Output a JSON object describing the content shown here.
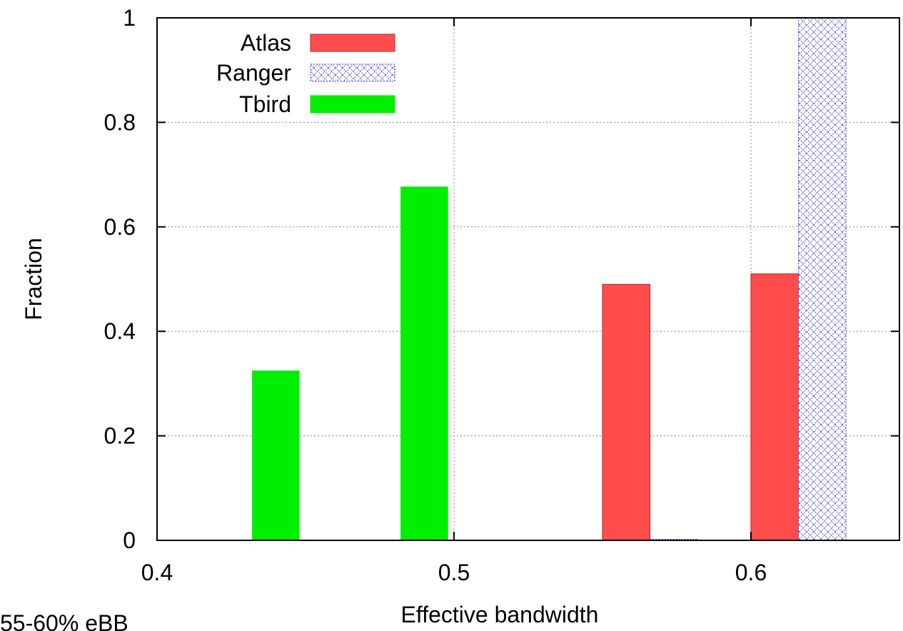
{
  "chart_data": {
    "type": "bar",
    "xlabel": "Effective bandwidth",
    "ylabel": "Fraction",
    "xlim": [
      0.4,
      0.65
    ],
    "ylim": [
      0,
      1
    ],
    "xticks": [
      "0.4",
      "0.5",
      "0.6"
    ],
    "yticks": [
      "0",
      "0.2",
      "0.4",
      "0.6",
      "0.8",
      "1"
    ],
    "grid": true,
    "legend": "top-left",
    "series": [
      {
        "name": "Atlas",
        "color": "#ff4d4d",
        "pattern": "solid",
        "bars": [
          {
            "x": 0.55,
            "x_end": 0.566,
            "value": 0.49
          },
          {
            "x": 0.6,
            "x_end": 0.616,
            "value": 0.51
          }
        ]
      },
      {
        "name": "Ranger",
        "color": "#3030e0",
        "pattern": "crosshatch",
        "bars": [
          {
            "x": 0.566,
            "x_end": 0.582,
            "value": 0.0
          },
          {
            "x": 0.616,
            "x_end": 0.632,
            "value": 1.0
          }
        ]
      },
      {
        "name": "Tbird",
        "color": "#00ee00",
        "pattern": "solid",
        "bars": [
          {
            "x": 0.432,
            "x_end": 0.448,
            "value": 0.325
          },
          {
            "x": 0.482,
            "x_end": 0.498,
            "value": 0.677
          }
        ]
      }
    ]
  },
  "caption": "55-60% eBB"
}
